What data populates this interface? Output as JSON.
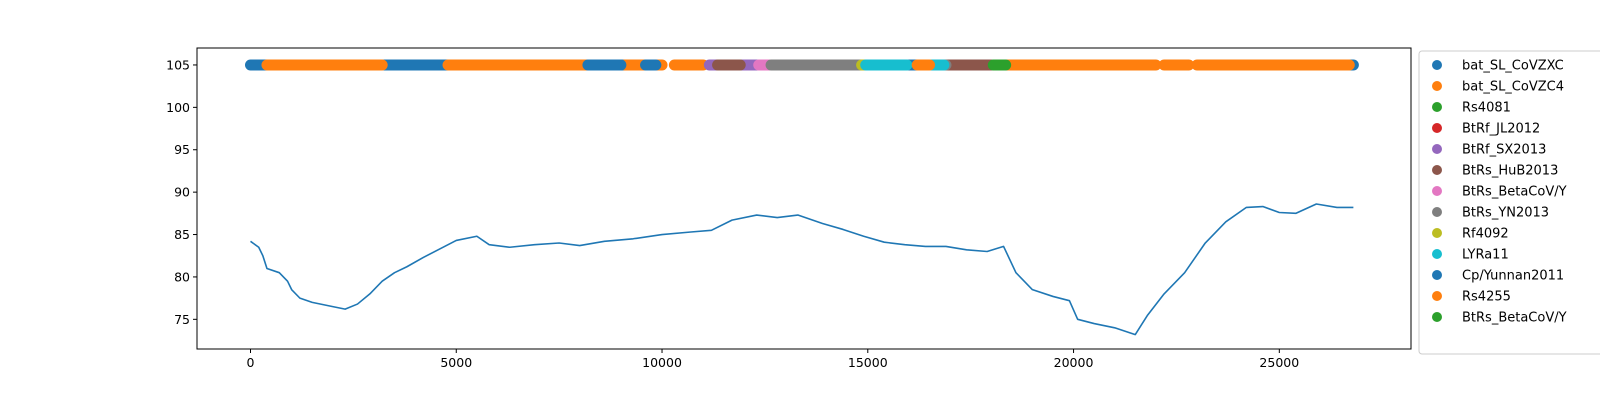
{
  "chart_data": {
    "type": "line",
    "title": "",
    "xlabel": "",
    "ylabel": "",
    "xlim": [
      -1300,
      28200
    ],
    "ylim": [
      71.5,
      107
    ],
    "xticks": [
      0,
      5000,
      10000,
      15000,
      20000,
      25000
    ],
    "yticks": [
      75,
      80,
      85,
      90,
      95,
      100,
      105
    ],
    "legend_position": "outside-right",
    "grid": false,
    "identity_line": {
      "color": "#1f77b4",
      "x": [
        0,
        200,
        300,
        400,
        700,
        800,
        900,
        1000,
        1200,
        1500,
        2000,
        2300,
        2600,
        2900,
        3200,
        3500,
        3800,
        4200,
        4600,
        5000,
        5500,
        5800,
        6300,
        6900,
        7500,
        8000,
        8600,
        9300,
        10000,
        10700,
        11200,
        11700,
        12300,
        12800,
        13300,
        13900,
        14400,
        14900,
        15400,
        15900,
        16400,
        16900,
        17400,
        17900,
        18300,
        18600,
        19000,
        19500,
        19900,
        20100,
        20500,
        21000,
        21500,
        21800,
        22200,
        22700,
        23200,
        23700,
        24200,
        24600,
        25000,
        25400,
        25900,
        26400,
        26800
      ],
      "y": [
        84.2,
        83.5,
        82.5,
        81.0,
        80.5,
        80.0,
        79.5,
        78.5,
        77.5,
        77.0,
        76.5,
        76.2,
        76.8,
        78.0,
        79.5,
        80.5,
        81.2,
        82.3,
        83.3,
        84.3,
        84.8,
        83.8,
        83.5,
        83.8,
        84.0,
        83.7,
        84.2,
        84.5,
        85.0,
        85.3,
        85.5,
        86.7,
        87.3,
        87.0,
        87.3,
        86.3,
        85.6,
        84.8,
        84.1,
        83.8,
        83.6,
        83.6,
        83.2,
        83.0,
        83.6,
        80.5,
        78.5,
        77.7,
        77.2,
        75.0,
        74.5,
        74.0,
        73.2,
        75.5,
        78.0,
        80.5,
        84.0,
        86.5,
        88.2,
        88.3,
        87.6,
        87.5,
        88.6,
        88.2,
        88.2
      ]
    },
    "strip_y": 105,
    "series": [
      {
        "name": "bat_SL_CoVZXC",
        "color": "#1f77b4",
        "segments": [
          [
            0,
            400
          ],
          [
            3250,
            4800
          ],
          [
            9000,
            9100
          ],
          [
            10600,
            10700
          ],
          [
            16000,
            16200
          ],
          [
            26700,
            26800
          ]
        ]
      },
      {
        "name": "bat_SL_CoVZC4",
        "color": "#ff7f0e",
        "segments": [
          [
            400,
            3200
          ],
          [
            4800,
            8200
          ],
          [
            9100,
            9600
          ],
          [
            9850,
            10000
          ],
          [
            10300,
            11000
          ]
        ]
      },
      {
        "name": "Rs4081",
        "color": "#2ca02c",
        "segments": [
          [
            11950,
            12000
          ]
        ]
      },
      {
        "name": "BtRf_JL2012",
        "color": "#d62728",
        "segments": []
      },
      {
        "name": "BtRf_SX2013",
        "color": "#9467bd",
        "segments": [
          [
            11150,
            11350
          ],
          [
            11950,
            12300
          ]
        ]
      },
      {
        "name": "BtRs_HuB2013",
        "color": "#8c564b",
        "segments": [
          [
            11350,
            11900
          ],
          [
            16900,
            18000
          ]
        ]
      },
      {
        "name": "BtRs_BetaCoV/Y",
        "color": "#e377c2",
        "segments": [
          [
            12350,
            12600
          ]
        ]
      },
      {
        "name": "BtRs_YN2013",
        "color": "#7f7f7f",
        "segments": [
          [
            12650,
            14850
          ],
          [
            16800,
            16900
          ]
        ]
      },
      {
        "name": "Rf4092",
        "color": "#bcbd22",
        "segments": [
          [
            14850,
            14950
          ]
        ]
      },
      {
        "name": "LYRa11",
        "color": "#17becf",
        "segments": [
          [
            14950,
            15950
          ],
          [
            16550,
            16850
          ]
        ]
      },
      {
        "name": "Cp/Yunnan2011",
        "color": "#1f77b4",
        "segments": [
          [
            8200,
            9000
          ],
          [
            9600,
            9850
          ]
        ]
      },
      {
        "name": "Rs4255",
        "color": "#ff7f0e",
        "segments": [
          [
            16200,
            16500
          ],
          [
            18350,
            22000
          ],
          [
            22200,
            22800
          ],
          [
            23000,
            26700
          ]
        ]
      },
      {
        "name": "BtRs_BetaCoV/Y",
        "color": "#2ca02c",
        "segments": [
          [
            18050,
            18350
          ]
        ]
      }
    ]
  }
}
